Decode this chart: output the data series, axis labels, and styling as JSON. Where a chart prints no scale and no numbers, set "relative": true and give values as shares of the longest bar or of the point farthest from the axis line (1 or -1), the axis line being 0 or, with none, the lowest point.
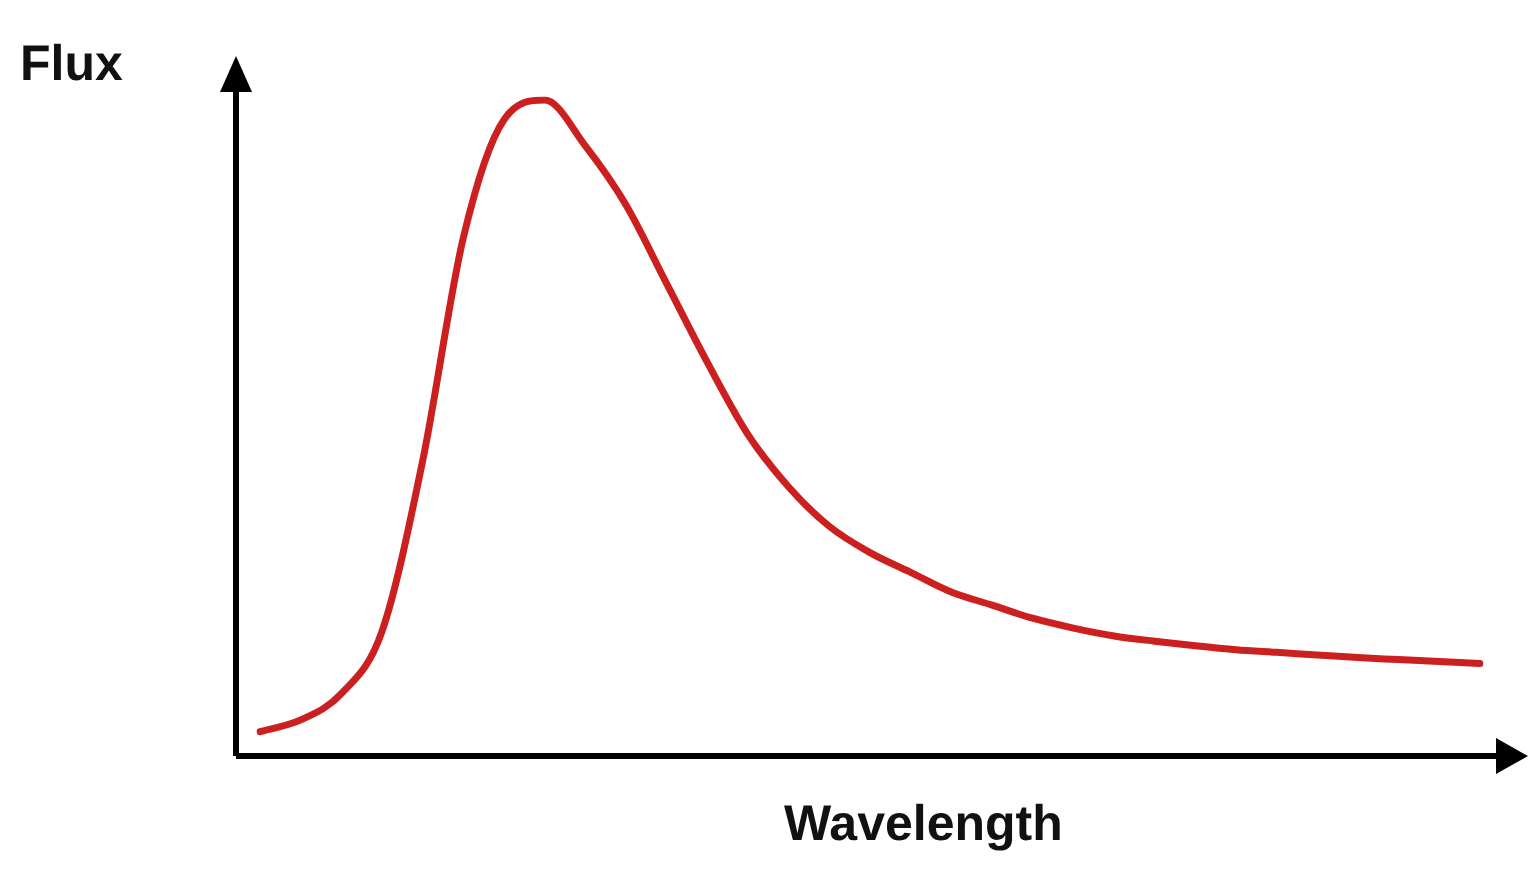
{
  "chart_data": {
    "type": "line",
    "relative": true,
    "xlabel": "Wavelength",
    "ylabel": "Flux",
    "marker": "none",
    "categories": [
      null,
      null,
      null,
      null,
      null,
      null,
      null,
      null,
      null,
      null,
      null,
      null,
      null,
      null,
      null,
      null,
      null,
      null,
      null,
      null,
      null,
      null,
      null,
      null,
      null,
      null,
      null,
      null,
      null,
      null,
      null
    ],
    "series": [
      {
        "color": "#cc2020",
        "values": [
          0.037,
          0.055,
          0.095,
          0.19,
          0.45,
          0.79,
          0.97,
          1,
          0.93,
          0.84,
          0.72,
          0.6,
          0.49,
          0.41,
          0.35,
          0.31,
          0.28,
          0.25,
          0.23,
          0.21,
          0.195,
          0.183,
          0.175,
          0.168,
          0.162,
          0.158,
          0.154,
          0.15,
          0.147,
          0.144,
          0.141
        ]
      }
    ]
  }
}
